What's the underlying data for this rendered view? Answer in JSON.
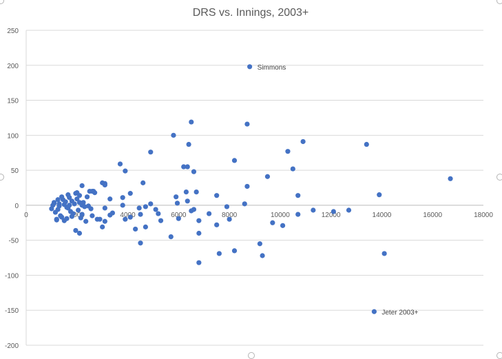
{
  "chart_data": {
    "type": "scatter",
    "title": "DRS vs. Innings, 2003+",
    "xlabel": "",
    "ylabel": "",
    "xlim": [
      0,
      18000
    ],
    "ylim": [
      -200,
      250
    ],
    "x_ticks": [
      0,
      2000,
      4000,
      6000,
      8000,
      10000,
      12000,
      14000,
      16000,
      18000
    ],
    "y_ticks": [
      250,
      200,
      150,
      100,
      50,
      0,
      -50,
      -100,
      -150,
      -200
    ],
    "grid": "horizontal",
    "legend": "none",
    "point_color": "#4472C4",
    "annotations": [
      {
        "label": "Simmons",
        "x": 8800,
        "y": 198
      },
      {
        "label": "Jeter 2003+",
        "x": 13700,
        "y": -152
      }
    ],
    "points": [
      [
        8800,
        198
      ],
      [
        13700,
        -152
      ],
      [
        6500,
        119
      ],
      [
        8700,
        116
      ],
      [
        5800,
        100
      ],
      [
        6400,
        87
      ],
      [
        10900,
        91
      ],
      [
        13400,
        87
      ],
      [
        4900,
        76
      ],
      [
        10300,
        77
      ],
      [
        8200,
        64
      ],
      [
        3700,
        59
      ],
      [
        3900,
        49
      ],
      [
        6200,
        55
      ],
      [
        6350,
        55
      ],
      [
        6600,
        48
      ],
      [
        10500,
        52
      ],
      [
        9500,
        41
      ],
      [
        16700,
        38
      ],
      [
        13900,
        15
      ],
      [
        10700,
        14
      ],
      [
        8700,
        27
      ],
      [
        4600,
        32
      ],
      [
        7500,
        14
      ],
      [
        6700,
        19
      ],
      [
        6300,
        19
      ],
      [
        5900,
        12
      ],
      [
        6350,
        6
      ],
      [
        5950,
        3
      ],
      [
        4900,
        2
      ],
      [
        4100,
        17
      ],
      [
        3800,
        11
      ],
      [
        3100,
        29
      ],
      [
        3000,
        32
      ],
      [
        3100,
        31
      ],
      [
        3300,
        9
      ],
      [
        3800,
        0
      ],
      [
        3100,
        -4
      ],
      [
        3400,
        -11
      ],
      [
        3300,
        -14
      ],
      [
        2900,
        -20
      ],
      [
        3100,
        -23
      ],
      [
        3000,
        -31
      ],
      [
        3900,
        -20
      ],
      [
        4100,
        -17
      ],
      [
        4300,
        -34
      ],
      [
        4500,
        -13
      ],
      [
        4450,
        -4
      ],
      [
        4700,
        -2
      ],
      [
        4700,
        -31
      ],
      [
        4500,
        -54
      ],
      [
        5100,
        -6
      ],
      [
        5200,
        -12
      ],
      [
        5300,
        -22
      ],
      [
        5700,
        -45
      ],
      [
        6000,
        -19
      ],
      [
        6500,
        -8
      ],
      [
        6600,
        -6
      ],
      [
        6800,
        -22
      ],
      [
        7200,
        -12
      ],
      [
        7500,
        -28
      ],
      [
        6800,
        -40
      ],
      [
        6800,
        -82
      ],
      [
        7600,
        -69
      ],
      [
        7900,
        -2
      ],
      [
        8000,
        -20
      ],
      [
        8200,
        -65
      ],
      [
        8600,
        2
      ],
      [
        9200,
        -55
      ],
      [
        9300,
        -72
      ],
      [
        9700,
        -25
      ],
      [
        10100,
        -29
      ],
      [
        10700,
        -13
      ],
      [
        11300,
        -7
      ],
      [
        12100,
        -9
      ],
      [
        12700,
        -7
      ],
      [
        14100,
        -69
      ],
      [
        1000,
        -5
      ],
      [
        1050,
        0
      ],
      [
        1100,
        4
      ],
      [
        1150,
        -10
      ],
      [
        1200,
        -20
      ],
      [
        1250,
        -6
      ],
      [
        1300,
        2
      ],
      [
        1350,
        -15
      ],
      [
        1400,
        12
      ],
      [
        1450,
        8
      ],
      [
        1500,
        -22
      ],
      [
        1550,
        5
      ],
      [
        1600,
        -3
      ],
      [
        1650,
        15
      ],
      [
        1700,
        11
      ],
      [
        1750,
        -9
      ],
      [
        1800,
        6
      ],
      [
        1850,
        -12
      ],
      [
        1900,
        2
      ],
      [
        1950,
        17
      ],
      [
        2000,
        9
      ],
      [
        2050,
        -7
      ],
      [
        2100,
        14
      ],
      [
        2150,
        -18
      ],
      [
        2200,
        28
      ],
      [
        2250,
        4
      ],
      [
        2300,
        -2
      ],
      [
        2350,
        -23
      ],
      [
        2400,
        12
      ],
      [
        2450,
        -1
      ],
      [
        2500,
        20
      ],
      [
        2550,
        -5
      ],
      [
        2600,
        -15
      ],
      [
        2650,
        20
      ],
      [
        2700,
        18
      ],
      [
        2800,
        -20
      ],
      [
        1950,
        -36
      ],
      [
        2100,
        -40
      ],
      [
        1200,
        -21
      ],
      [
        1400,
        -17
      ],
      [
        1600,
        -19
      ],
      [
        1800,
        -16
      ],
      [
        2200,
        -13
      ],
      [
        2100,
        4
      ],
      [
        1700,
        0
      ],
      [
        1500,
        1
      ],
      [
        1300,
        -1
      ],
      [
        1100,
        3
      ],
      [
        1250,
        8
      ],
      [
        1650,
        -4
      ],
      [
        2000,
        18
      ],
      [
        2200,
        0
      ],
      [
        2600,
        20
      ]
    ]
  }
}
